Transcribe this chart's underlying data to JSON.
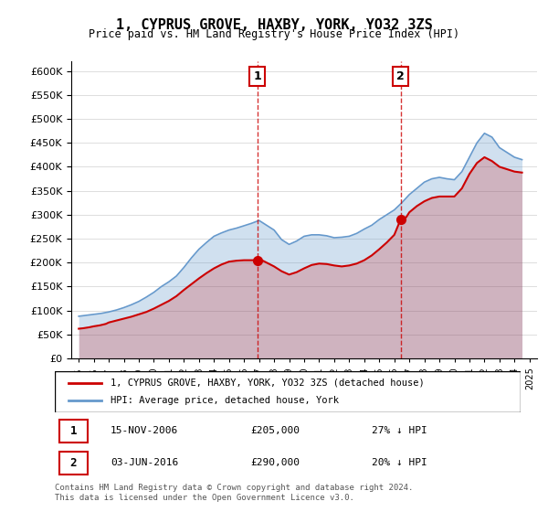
{
  "title": "1, CYPRUS GROVE, HAXBY, YORK, YO32 3ZS",
  "subtitle": "Price paid vs. HM Land Registry's House Price Index (HPI)",
  "legend_line1": "1, CYPRUS GROVE, HAXBY, YORK, YO32 3ZS (detached house)",
  "legend_line2": "HPI: Average price, detached house, York",
  "footnote": "Contains HM Land Registry data © Crown copyright and database right 2024.\nThis data is licensed under the Open Government Licence v3.0.",
  "annotation1_label": "1",
  "annotation1_date": "15-NOV-2006",
  "annotation1_price": "£205,000",
  "annotation1_pct": "27% ↓ HPI",
  "annotation2_label": "2",
  "annotation2_date": "03-JUN-2016",
  "annotation2_price": "£290,000",
  "annotation2_pct": "20% ↓ HPI",
  "red_color": "#cc0000",
  "blue_color": "#6699cc",
  "ylim_min": 0,
  "ylim_max": 620000,
  "yticks": [
    0,
    50000,
    100000,
    150000,
    200000,
    250000,
    300000,
    350000,
    400000,
    450000,
    500000,
    550000,
    600000
  ],
  "xlim_min": 1994.5,
  "xlim_max": 2025.5,
  "sale1_x": 2006.87,
  "sale1_y": 205000,
  "sale2_x": 2016.42,
  "sale2_y": 290000,
  "hpi_x": [
    1995,
    1995.5,
    1996,
    1996.5,
    1997,
    1997.5,
    1998,
    1998.5,
    1999,
    1999.5,
    2000,
    2000.5,
    2001,
    2001.5,
    2002,
    2002.5,
    2003,
    2003.5,
    2004,
    2004.5,
    2005,
    2005.5,
    2006,
    2006.5,
    2007,
    2007.5,
    2008,
    2008.5,
    2009,
    2009.5,
    2010,
    2010.5,
    2011,
    2011.5,
    2012,
    2012.5,
    2013,
    2013.5,
    2014,
    2014.5,
    2015,
    2015.5,
    2016,
    2016.5,
    2017,
    2017.5,
    2018,
    2018.5,
    2019,
    2019.5,
    2020,
    2020.5,
    2021,
    2021.5,
    2022,
    2022.5,
    2023,
    2023.5,
    2024,
    2024.5
  ],
  "hpi_y": [
    88000,
    90000,
    92000,
    94000,
    97000,
    101000,
    106000,
    112000,
    119000,
    128000,
    138000,
    150000,
    160000,
    172000,
    190000,
    210000,
    228000,
    242000,
    255000,
    262000,
    268000,
    272000,
    277000,
    282000,
    288000,
    278000,
    268000,
    248000,
    238000,
    245000,
    255000,
    258000,
    258000,
    256000,
    252000,
    253000,
    255000,
    261000,
    270000,
    278000,
    290000,
    300000,
    310000,
    325000,
    342000,
    355000,
    368000,
    375000,
    378000,
    375000,
    373000,
    390000,
    420000,
    450000,
    470000,
    462000,
    440000,
    430000,
    420000,
    415000
  ],
  "price_x": [
    1995,
    1995.3,
    1995.7,
    1996,
    1996.4,
    1996.8,
    1997,
    1997.5,
    1998,
    1998.5,
    1999,
    1999.5,
    2000,
    2000.5,
    2001,
    2001.5,
    2002,
    2002.5,
    2003,
    2003.5,
    2004,
    2004.5,
    2005,
    2005.5,
    2006,
    2006.5,
    2006.87,
    2007,
    2007.5,
    2008,
    2008.5,
    2009,
    2009.5,
    2010,
    2010.5,
    2011,
    2011.5,
    2012,
    2012.5,
    2013,
    2013.5,
    2014,
    2014.5,
    2015,
    2015.5,
    2016,
    2016.42,
    2016.8,
    2017,
    2017.5,
    2018,
    2018.5,
    2019,
    2019.5,
    2020,
    2020.5,
    2021,
    2021.5,
    2022,
    2022.5,
    2023,
    2023.5,
    2024,
    2024.5
  ],
  "price_y": [
    62000,
    63000,
    65000,
    67000,
    69000,
    72000,
    75000,
    79000,
    83000,
    87000,
    92000,
    97000,
    104000,
    112000,
    120000,
    130000,
    143000,
    155000,
    167000,
    178000,
    188000,
    196000,
    202000,
    204000,
    205000,
    205000,
    205000,
    208000,
    200000,
    192000,
    182000,
    175000,
    180000,
    188000,
    195000,
    198000,
    197000,
    194000,
    192000,
    194000,
    198000,
    205000,
    215000,
    228000,
    242000,
    258000,
    290000,
    295000,
    305000,
    318000,
    328000,
    335000,
    338000,
    338000,
    338000,
    355000,
    385000,
    408000,
    420000,
    412000,
    400000,
    395000,
    390000,
    388000
  ]
}
